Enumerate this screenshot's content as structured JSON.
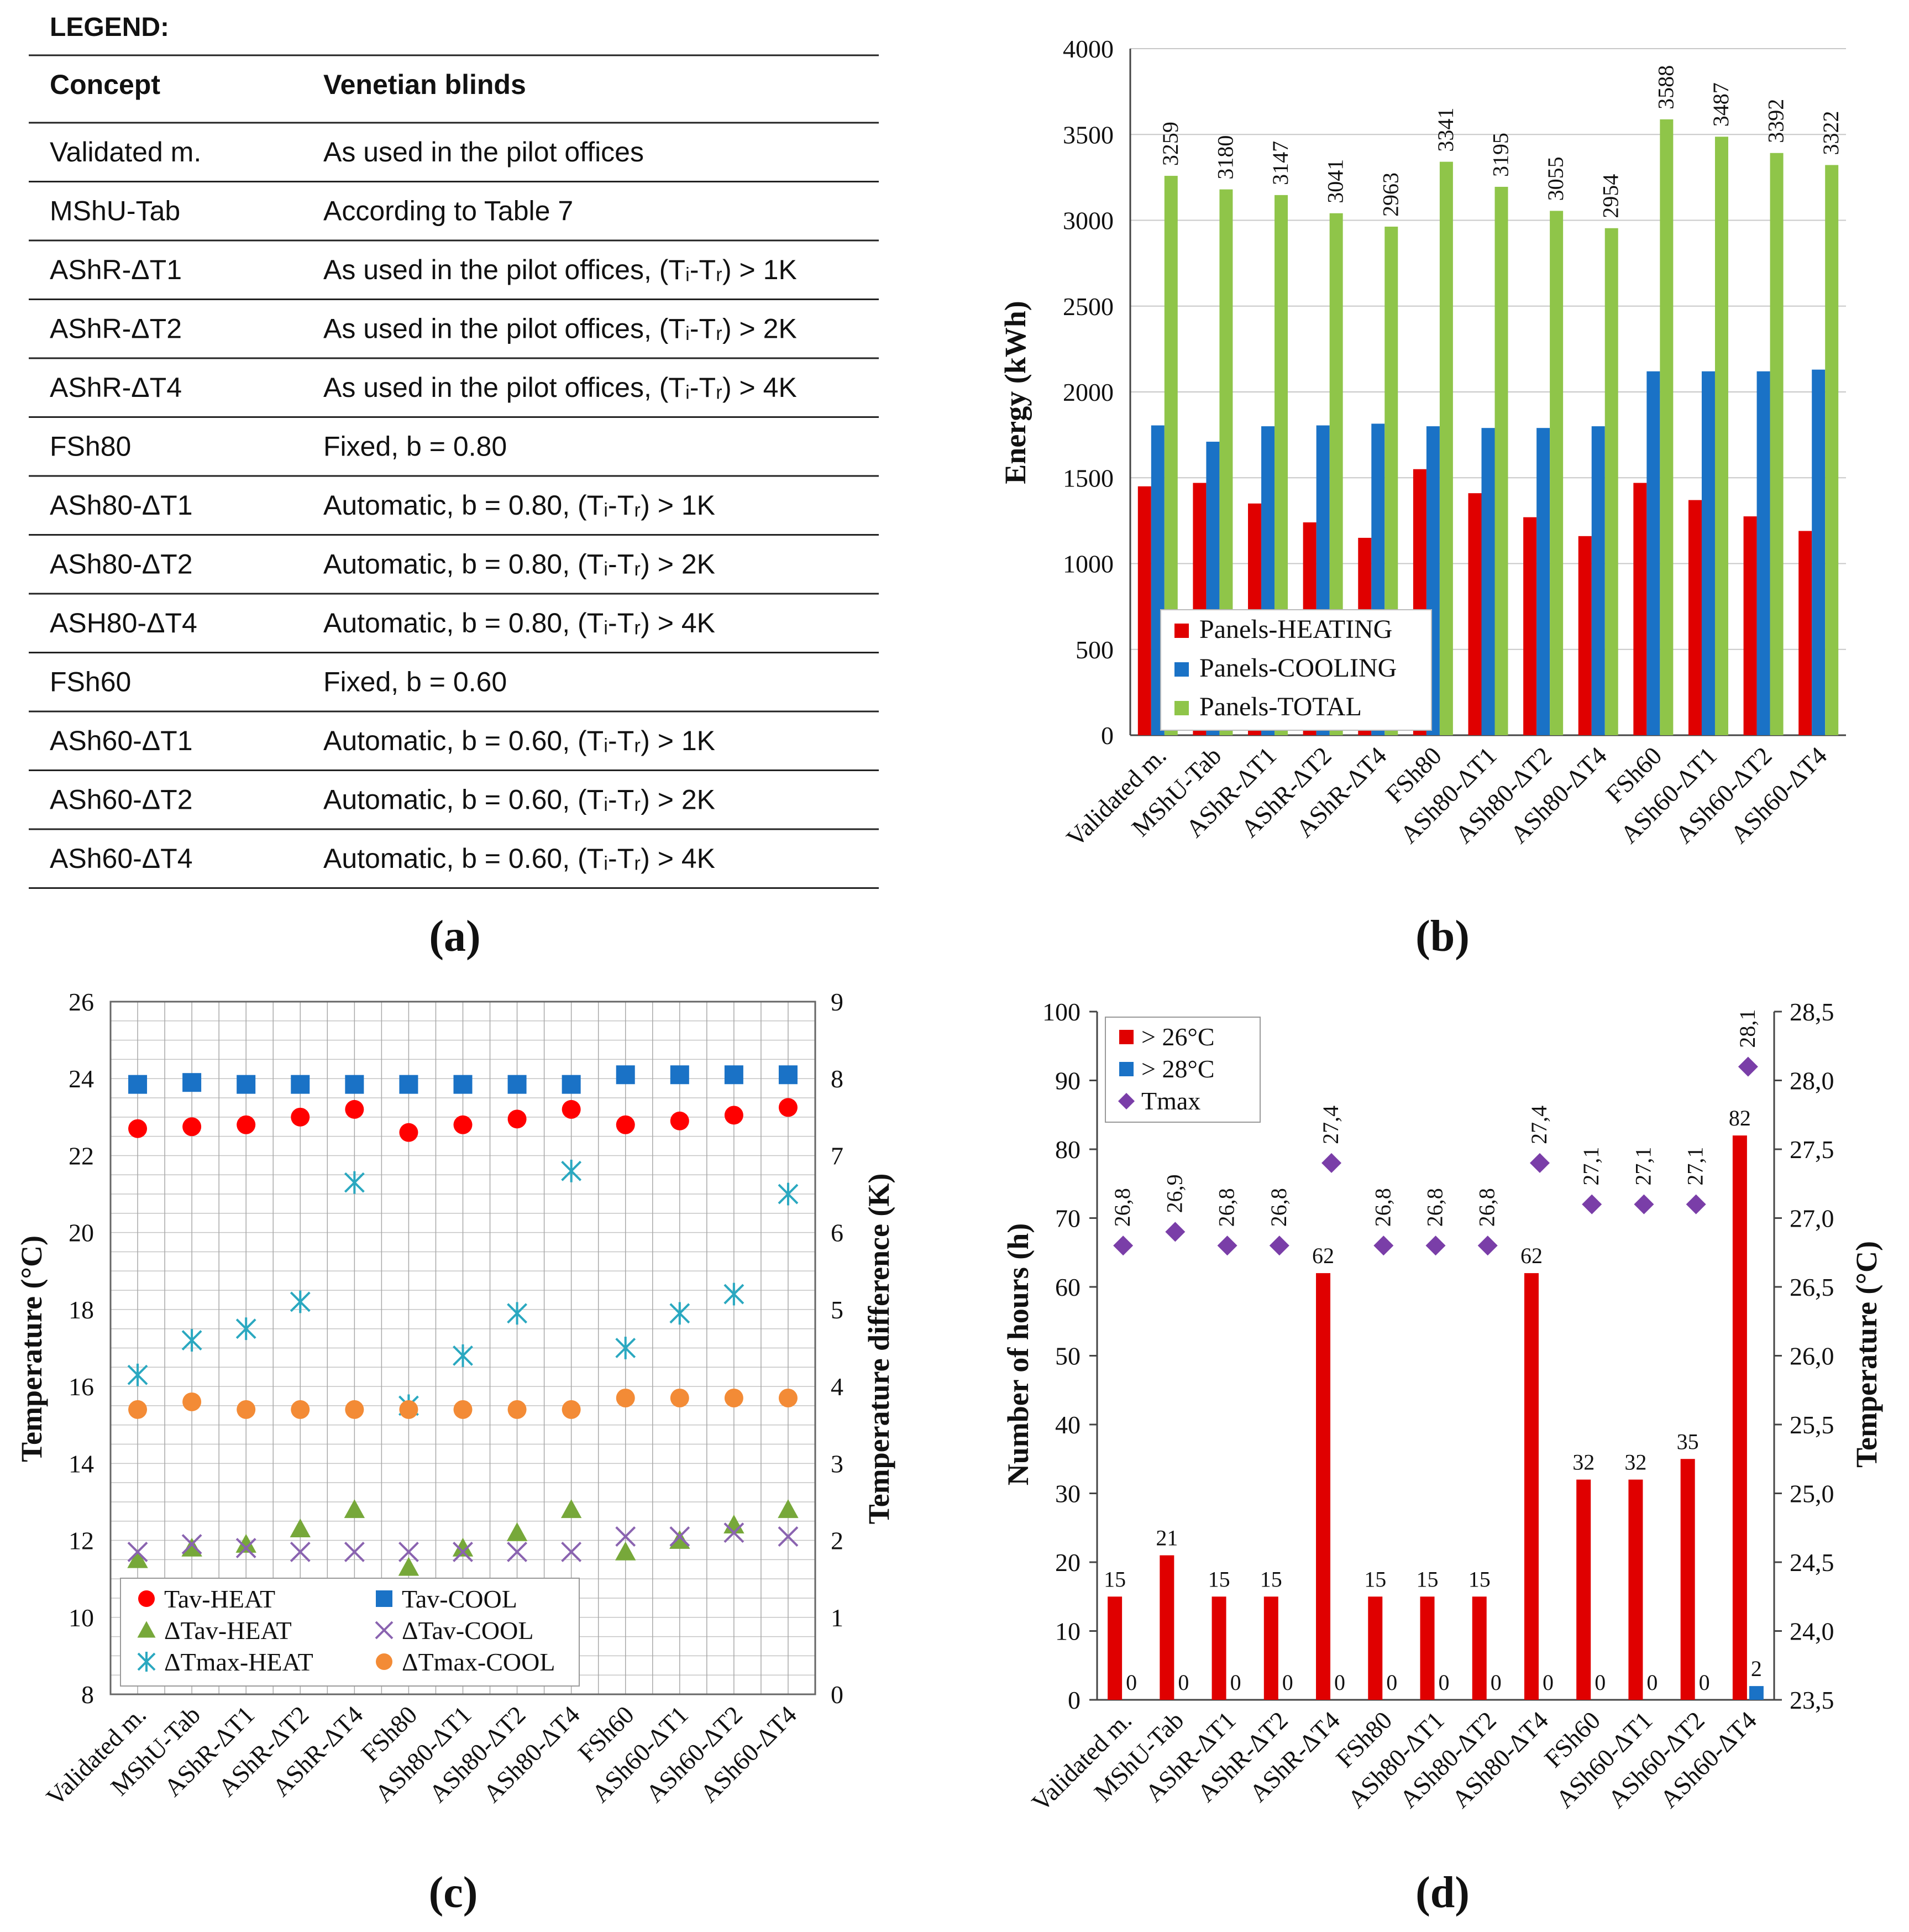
{
  "panel_labels": {
    "a": "(a)",
    "b": "(b)",
    "c": "(c)",
    "d": "(d)"
  },
  "legend_table": {
    "title": "LEGEND:",
    "headers": [
      "Concept",
      "Venetian blinds"
    ],
    "rows": [
      [
        "Validated m.",
        "As used in the pilot offices"
      ],
      [
        "MShU-Tab",
        "According to Table 7"
      ],
      [
        "AShR-ΔT1",
        "As used in the pilot offices, (Tᵢ-Tᵣ) > 1K"
      ],
      [
        "AShR-ΔT2",
        "As used in the pilot offices, (Tᵢ-Tᵣ) > 2K"
      ],
      [
        "AShR-ΔT4",
        "As used in the pilot offices, (Tᵢ-Tᵣ) > 4K"
      ],
      [
        "FSh80",
        "Fixed, b = 0.80"
      ],
      [
        "ASh80-ΔT1",
        "Automatic, b = 0.80, (Tᵢ-Tᵣ) > 1K"
      ],
      [
        "ASh80-ΔT2",
        "Automatic, b = 0.80, (Tᵢ-Tᵣ) > 2K"
      ],
      [
        "ASH80-ΔT4",
        "Automatic, b = 0.80, (Tᵢ-Tᵣ) > 4K"
      ],
      [
        "FSh60",
        "Fixed, b = 0.60"
      ],
      [
        "ASh60-ΔT1",
        "Automatic, b = 0.60, (Tᵢ-Tᵣ) > 1K"
      ],
      [
        "ASh60-ΔT2",
        "Automatic, b = 0.60, (Tᵢ-Tᵣ) > 2K"
      ],
      [
        "ASh60-ΔT4",
        "Automatic, b = 0.60, (Tᵢ-Tᵣ) > 4K"
      ]
    ]
  },
  "chart_data": [
    {
      "id": "b",
      "type": "bar",
      "categories": [
        "Validated m.",
        "MShU-Tab",
        "AShR-ΔT1",
        "AShR-ΔT2",
        "AShR-ΔT4",
        "FSh80",
        "ASh80-ΔT1",
        "ASh80-ΔT2",
        "ASh80-ΔT4",
        "FSh60",
        "ASh60-ΔT1",
        "ASh60-ΔT2",
        "ASh60-ΔT4"
      ],
      "series": [
        {
          "name": "Panels-HEATING",
          "color": "#e00000",
          "values": [
            1450,
            1470,
            1350,
            1240,
            1150,
            1550,
            1410,
            1270,
            1160,
            1470,
            1370,
            1275,
            1190
          ]
        },
        {
          "name": "Panels-COOLING",
          "color": "#1a72c6",
          "values": [
            1805,
            1710,
            1800,
            1805,
            1815,
            1800,
            1790,
            1790,
            1800,
            2120,
            2120,
            2120,
            2130
          ]
        },
        {
          "name": "Panels-TOTAL",
          "color": "#8fc549",
          "values": [
            3259,
            3180,
            3147,
            3041,
            2963,
            3341,
            3195,
            3055,
            2954,
            3588,
            3487,
            3392,
            3322
          ]
        }
      ],
      "total_labels": [
        "3259",
        "3180",
        "3147",
        "3041",
        "2963",
        "3341",
        "3195",
        "3055",
        "2954",
        "3588",
        "3487",
        "3392",
        "3322"
      ],
      "ylabel": "Energy (kWh)",
      "ylim": [
        0,
        4000
      ],
      "yticks": [
        "0",
        "500",
        "1000",
        "1500",
        "2000",
        "2500",
        "3000",
        "3500",
        "4000"
      ],
      "legend_position": "lower-left"
    },
    {
      "id": "c",
      "type": "scatter",
      "categories": [
        "Validated m.",
        "MShU-Tab",
        "AShR-ΔT1",
        "AShR-ΔT2",
        "AShR-ΔT4",
        "FSh80",
        "ASh80-ΔT1",
        "ASh80-ΔT2",
        "ASh80-ΔT4",
        "FSh60",
        "ASh60-ΔT1",
        "ASh60-ΔT2",
        "ASh60-ΔT4"
      ],
      "series": [
        {
          "name": "Tav-HEAT",
          "axis": "left",
          "marker": "circle",
          "color": "#ff0000",
          "values": [
            22.7,
            22.75,
            22.8,
            23.0,
            23.2,
            22.6,
            22.8,
            22.95,
            23.2,
            22.8,
            22.9,
            23.05,
            23.25
          ]
        },
        {
          "name": "Tav-COOL",
          "axis": "left",
          "marker": "square",
          "color": "#1a72c6",
          "values": [
            23.85,
            23.9,
            23.85,
            23.85,
            23.85,
            23.85,
            23.85,
            23.85,
            23.85,
            24.1,
            24.1,
            24.1,
            24.1
          ]
        },
        {
          "name": "ΔTav-HEAT",
          "axis": "right",
          "marker": "triangle",
          "color": "#77a83a",
          "values": [
            1.75,
            1.9,
            1.95,
            2.15,
            2.4,
            1.65,
            1.9,
            2.1,
            2.4,
            1.85,
            2.0,
            2.2,
            2.4
          ]
        },
        {
          "name": "ΔTav-COOL",
          "axis": "right",
          "marker": "x",
          "color": "#8a63b0",
          "values": [
            1.85,
            1.95,
            1.9,
            1.85,
            1.85,
            1.85,
            1.85,
            1.85,
            1.85,
            2.05,
            2.05,
            2.1,
            2.05
          ]
        },
        {
          "name": "ΔTmax-HEAT",
          "axis": "right",
          "marker": "star",
          "color": "#2aa8c0",
          "values": [
            4.15,
            4.6,
            4.75,
            5.1,
            6.65,
            3.75,
            4.4,
            4.95,
            6.8,
            4.5,
            4.95,
            5.2,
            6.5
          ]
        },
        {
          "name": "ΔTmax-COOL",
          "axis": "right",
          "marker": "circle",
          "color": "#f38b36",
          "values": [
            3.7,
            3.8,
            3.7,
            3.7,
            3.7,
            3.7,
            3.7,
            3.7,
            3.7,
            3.85,
            3.85,
            3.85,
            3.85
          ]
        }
      ],
      "ylabel": "Temperature  (°C)",
      "y2label": "Temperature  difference (K)",
      "ylim": [
        8,
        26
      ],
      "y2lim": [
        0,
        9
      ],
      "yticks": [
        "8",
        "10",
        "12",
        "14",
        "16",
        "18",
        "20",
        "22",
        "24",
        "26"
      ],
      "y2ticks": [
        "0",
        "1",
        "2",
        "3",
        "4",
        "5",
        "6",
        "7",
        "8",
        "9"
      ],
      "grid": true,
      "legend_position": "bottom"
    },
    {
      "id": "d",
      "type": "bar",
      "categories": [
        "Validated m.",
        "MShU-Tab",
        "AShR-ΔT1",
        "AShR-ΔT2",
        "AShR-ΔT4",
        "FSh80",
        "ASh80-ΔT1",
        "ASh80-ΔT2",
        "ASh80-ΔT4",
        "FSh60",
        "ASh60-ΔT1",
        "ASh60-ΔT2",
        "ASh60-ΔT4"
      ],
      "series": [
        {
          "name": "> 26°C",
          "color": "#e00000",
          "values": [
            15,
            21,
            15,
            15,
            62,
            15,
            15,
            15,
            62,
            32,
            32,
            35,
            82
          ],
          "labels": [
            "15",
            "21",
            "15",
            "15",
            "62",
            "15",
            "15",
            "15",
            "62",
            "32",
            "32",
            "35",
            "82"
          ]
        },
        {
          "name": "> 28°C",
          "color": "#1a72c6",
          "values": [
            0,
            0,
            0,
            0,
            0,
            0,
            0,
            0,
            0,
            0,
            0,
            0,
            2
          ],
          "labels": [
            "0",
            "0",
            "0",
            "0",
            "0",
            "0",
            "0",
            "0",
            "0",
            "0",
            "0",
            "0",
            "2"
          ]
        },
        {
          "name": "Tmax",
          "axis": "right",
          "marker": "diamond",
          "color": "#7a3ea8",
          "values": [
            26.8,
            26.9,
            26.8,
            26.8,
            27.4,
            26.8,
            26.8,
            26.8,
            27.4,
            27.1,
            27.1,
            27.1,
            28.1
          ],
          "labels": [
            "26,8",
            "26,9",
            "26,8",
            "26,8",
            "27,4",
            "26,8",
            "26,8",
            "26,8",
            "27,4",
            "27,1",
            "27,1",
            "27,1",
            "28,1"
          ]
        }
      ],
      "ylabel": "Number of hours (h)",
      "y2label": "Temperature  (°C)",
      "ylim": [
        0,
        100
      ],
      "y2lim": [
        23.5,
        28.5
      ],
      "yticks": [
        "0",
        "10",
        "20",
        "30",
        "40",
        "50",
        "60",
        "70",
        "80",
        "90",
        "100"
      ],
      "y2ticks": [
        "23,5",
        "24,0",
        "24,5",
        "25,0",
        "25,5",
        "26,0",
        "26,5",
        "27,0",
        "27,5",
        "28,0",
        "28,5"
      ],
      "legend_position": "top-left"
    }
  ]
}
